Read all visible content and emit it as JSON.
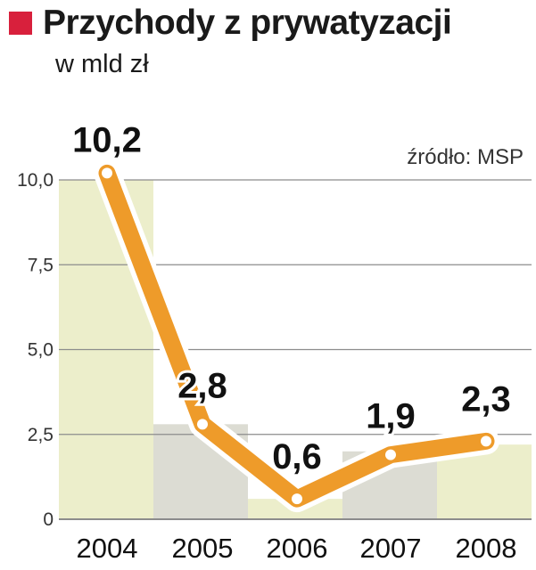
{
  "header": {
    "title": "Przychody z prywatyzacji",
    "subtitle": "w mld zł",
    "source": "źródło: MSP"
  },
  "colors": {
    "accent_square": "#d8203c",
    "line": "#ee9b2a",
    "line_halo": "#ffffff",
    "grid": "#8c8c8c",
    "axis_text": "#333333",
    "label_text": "#111111"
  },
  "chart_data": {
    "type": "line",
    "categories": [
      "2004",
      "2005",
      "2006",
      "2007",
      "2008"
    ],
    "values": [
      10.2,
      2.8,
      0.6,
      1.9,
      2.3
    ],
    "value_labels": [
      "10,2",
      "2,8",
      "0,6",
      "1,9",
      "2,3"
    ],
    "bar_colors": [
      "#eceecb",
      "#dcdcd3",
      "#eceecb",
      "#dcdcd3",
      "#eceecb"
    ],
    "bar_values": [
      10.0,
      2.8,
      0.6,
      2.0,
      2.2
    ],
    "yticks": [
      0,
      2.5,
      5.0,
      7.5,
      10.0
    ],
    "ytick_labels": [
      "0",
      "2,5",
      "5,0",
      "7,5",
      "10,0"
    ],
    "ylim": [
      0,
      10.0
    ],
    "grid": true,
    "xlabel": "",
    "ylabel": ""
  }
}
